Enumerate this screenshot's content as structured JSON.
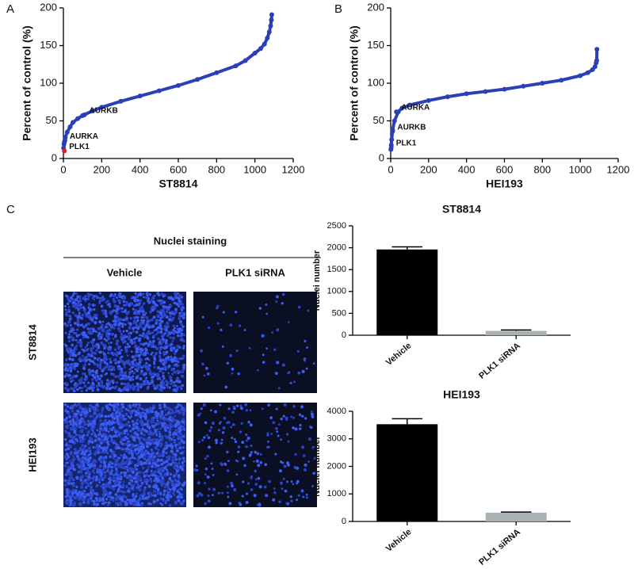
{
  "panel_labels": [
    "A",
    "B",
    "C"
  ],
  "staining": {
    "title": "Nuclei staining",
    "columns": [
      "Vehicle",
      "PLK1 siRNA"
    ],
    "rows": [
      "ST8814",
      "HEI193"
    ]
  },
  "chart_data": [
    {
      "type": "scatter",
      "xlabel": "ST8814",
      "ylabel": "Percent of control (%)",
      "color": "#2a3fb8",
      "x": [
        1,
        3,
        5,
        10,
        20,
        35,
        50,
        75,
        100,
        150,
        200,
        300,
        400,
        500,
        600,
        700,
        800,
        900,
        950,
        1000,
        1030,
        1050,
        1065,
        1075,
        1082,
        1086,
        1088
      ],
      "values": [
        14,
        19,
        22,
        28,
        35,
        42,
        48,
        53,
        57,
        63,
        68,
        76,
        83,
        90,
        97,
        105,
        114,
        123,
        130,
        140,
        146,
        152,
        160,
        168,
        176,
        184,
        191
      ],
      "annotations": [
        {
          "text": "AURKB",
          "x": 110,
          "y": 58
        },
        {
          "text": "AURKA",
          "x": 8,
          "y": 24
        },
        {
          "text": "PLK1",
          "x": 5,
          "y": 10,
          "color": "#e02020"
        }
      ],
      "xlim": [
        0,
        1200
      ],
      "xticks": [
        0,
        200,
        400,
        600,
        800,
        1000,
        1200
      ],
      "ylim": [
        0,
        200
      ],
      "yticks": [
        0,
        50,
        100,
        150,
        200
      ]
    },
    {
      "type": "scatter",
      "xlabel": "HEI193",
      "ylabel": "Percent of control (%)",
      "color": "#2a3fb8",
      "x": [
        1,
        3,
        5,
        10,
        20,
        40,
        60,
        100,
        200,
        300,
        400,
        500,
        600,
        700,
        800,
        900,
        1000,
        1040,
        1065,
        1078,
        1084,
        1087,
        1088
      ],
      "values": [
        12,
        18,
        25,
        38,
        50,
        62,
        67,
        71,
        77,
        82,
        86,
        89,
        92,
        96,
        100,
        104,
        110,
        114,
        118,
        122,
        127,
        130,
        145
      ],
      "annotations": [
        {
          "text": "AURKA",
          "x": 30,
          "y": 62
        },
        {
          "text": "AURKB",
          "x": 10,
          "y": 36
        },
        {
          "text": "PLK1",
          "x": 3,
          "y": 15
        }
      ],
      "xlim": [
        0,
        1200
      ],
      "xticks": [
        0,
        200,
        400,
        600,
        800,
        1000,
        1200
      ],
      "ylim": [
        0,
        200
      ],
      "yticks": [
        0,
        50,
        100,
        150,
        200
      ]
    },
    {
      "type": "bar",
      "title": "ST8814",
      "ylabel": "Nuclei number",
      "categories": [
        "Vehicle",
        "PLK1 siRNA"
      ],
      "values": [
        1960,
        100
      ],
      "errors": [
        60,
        20
      ],
      "colors": [
        "#000000",
        "#a9b1b5"
      ],
      "ylim": [
        0,
        2500
      ],
      "yticks": [
        0,
        500,
        1000,
        1500,
        2000,
        2500
      ]
    },
    {
      "type": "bar",
      "title": "HEI193",
      "ylabel": "Nuclei number",
      "categories": [
        "Vehicle",
        "PLK1 siRNA"
      ],
      "values": [
        3530,
        320
      ],
      "errors": [
        200,
        20
      ],
      "colors": [
        "#000000",
        "#a9b1b5"
      ],
      "ylim": [
        0,
        4000
      ],
      "yticks": [
        0,
        1000,
        2000,
        3000,
        4000
      ]
    }
  ]
}
